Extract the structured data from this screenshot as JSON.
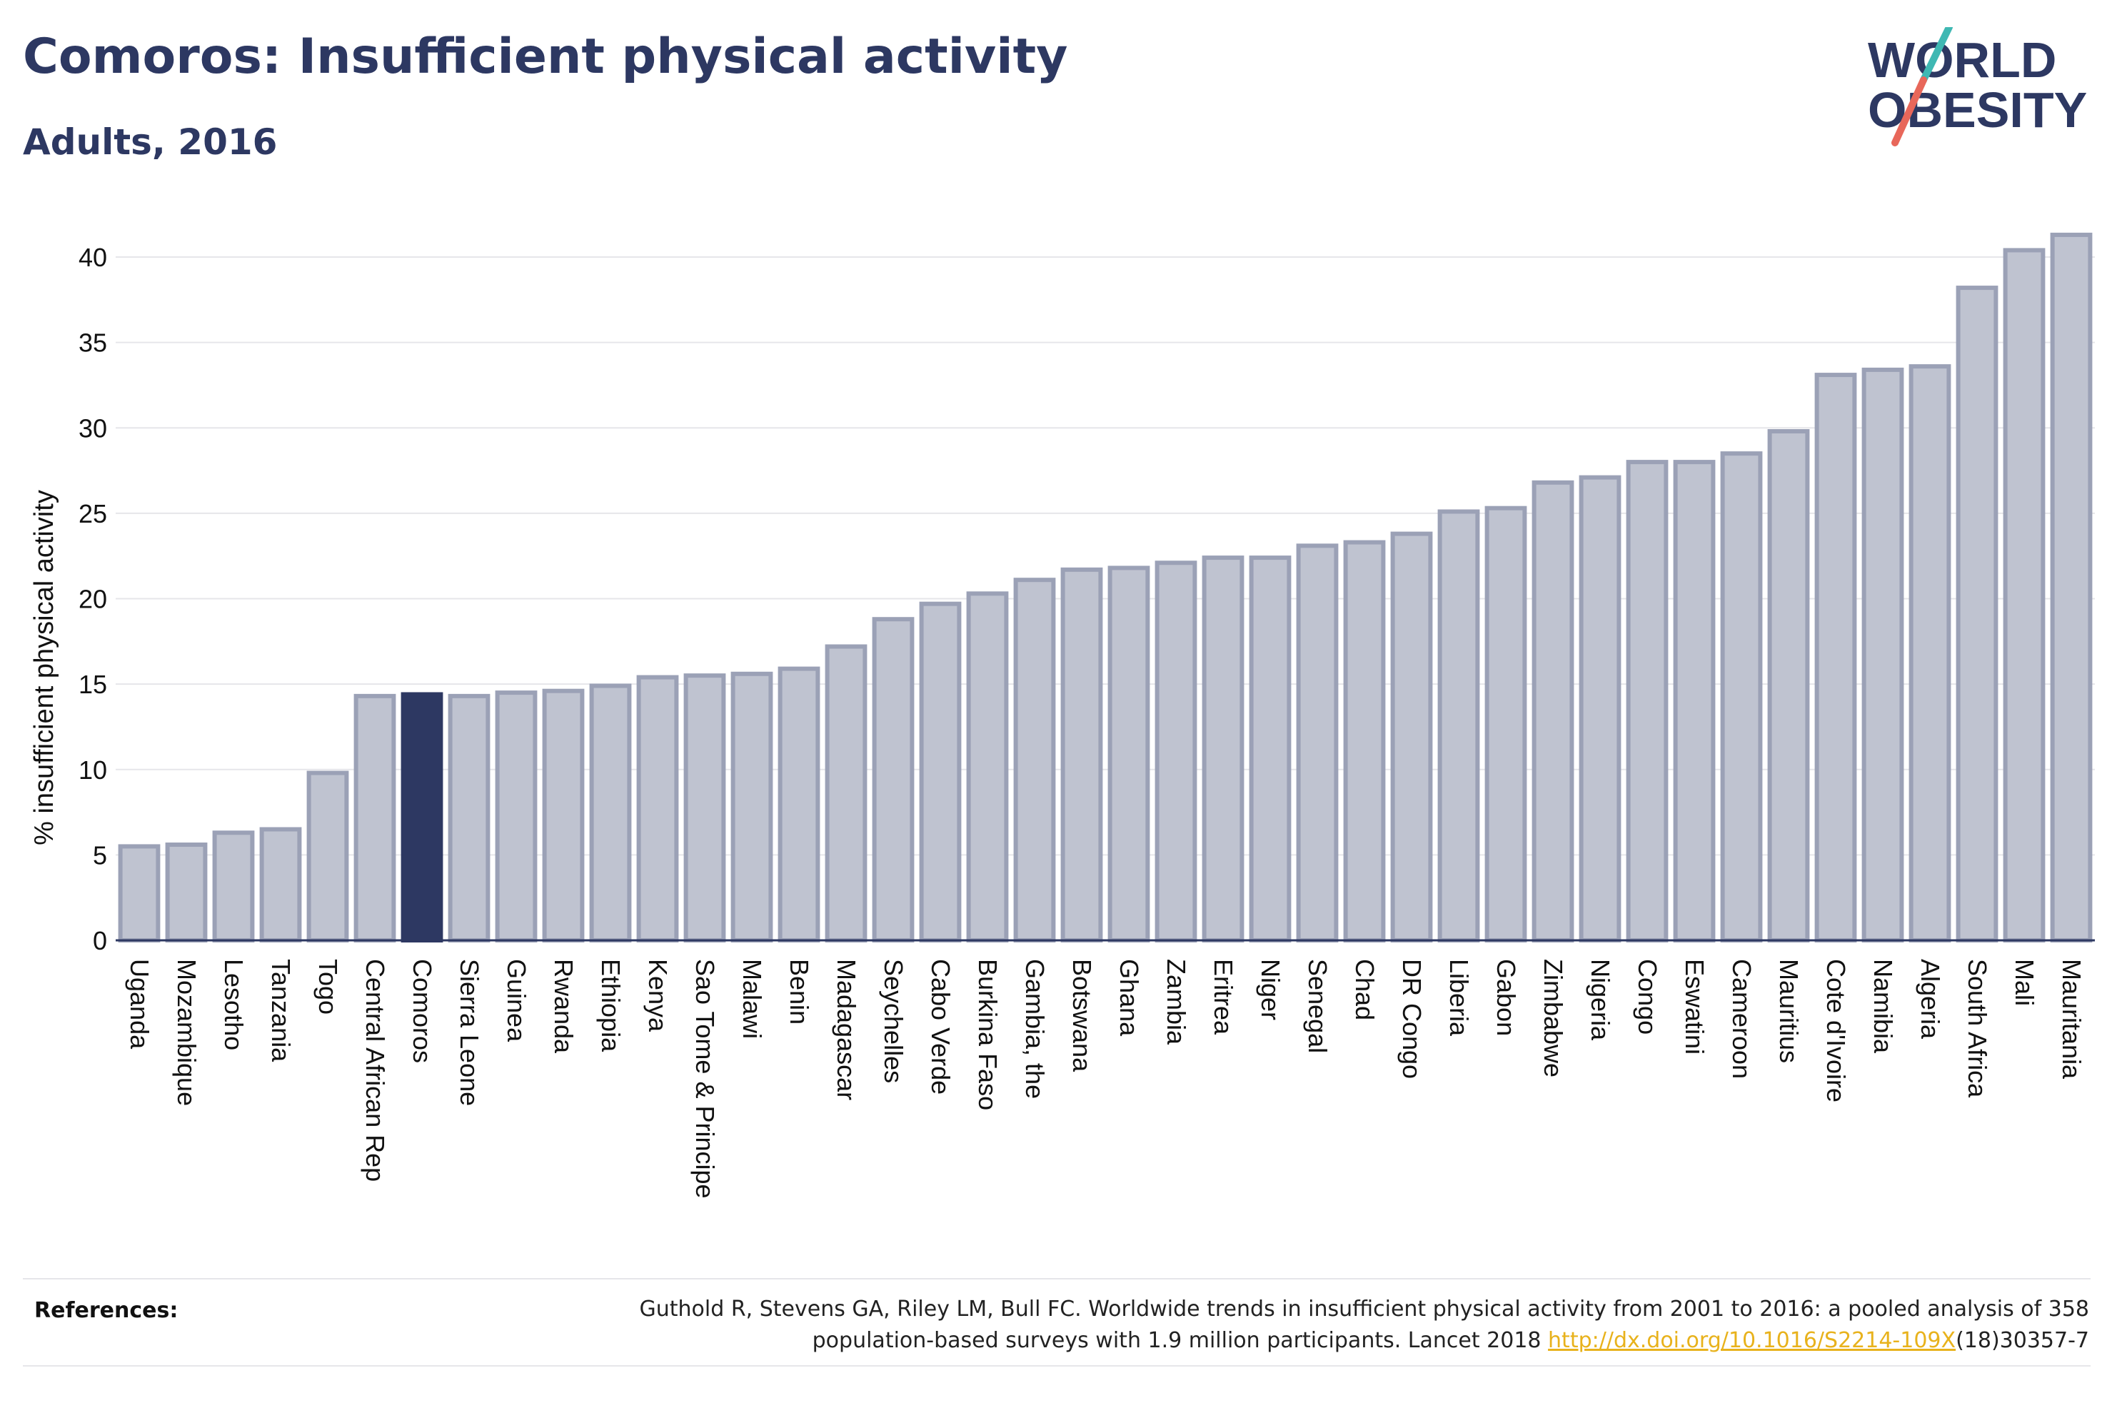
{
  "header": {
    "title": "Comoros: Insufficient physical activity",
    "subtitle": "Adults, 2016"
  },
  "logo": {
    "line1": "WORLD",
    "line2": "OBESITY",
    "accent_teal": "#3fb8b3",
    "accent_coral": "#e8675a",
    "text_color": "#2d3862"
  },
  "references": {
    "label": "References:",
    "text_line1": "Guthold R, Stevens GA, Riley LM, Bull FC. Worldwide trends in insufficient physical activity from 2001 to 2016: a pooled analysis of 358",
    "text_line2_before": "population-based surveys with 1.9 million participants. Lancet 2018 ",
    "link": "http://dx.doi.org/10.1016/S2214-109X",
    "text_line2_after": "(18)30357-7"
  },
  "chart_data": {
    "type": "bar",
    "ylabel": "% insufficient physical activity",
    "xlabel": "",
    "ylim": [
      0,
      42.5
    ],
    "yticks": [
      0,
      5,
      10,
      15,
      20,
      25,
      30,
      35,
      40
    ],
    "grid": true,
    "highlight": "Comoros",
    "colors": {
      "bar": "#bfc3d0",
      "bar_stroke": "#9ba1b6",
      "highlight": "#2d3862",
      "grid": "#e6e6ea"
    },
    "categories": [
      "Uganda",
      "Mozambique",
      "Lesotho",
      "Tanzania",
      "Togo",
      "Central African Rep",
      "Comoros",
      "Sierra Leone",
      "Guinea",
      "Rwanda",
      "Ethiopia",
      "Kenya",
      "Sao Tome & Principe",
      "Malawi",
      "Benin",
      "Madagascar",
      "Seychelles",
      "Cabo Verde",
      "Burkina Faso",
      "Gambia, the",
      "Botswana",
      "Ghana",
      "Zambia",
      "Eritrea",
      "Niger",
      "Senegal",
      "Chad",
      "DR Congo",
      "Liberia",
      "Gabon",
      "Zimbabwe",
      "Nigeria",
      "Congo",
      "Eswatini",
      "Cameroon",
      "Mauritius",
      "Cote d'Ivoire",
      "Namibia",
      "Algeria",
      "South Africa",
      "Mali",
      "Mauritania"
    ],
    "values": [
      5.5,
      5.6,
      6.3,
      6.5,
      9.8,
      14.3,
      14.4,
      14.3,
      14.5,
      14.6,
      14.9,
      15.4,
      15.5,
      15.6,
      15.9,
      17.2,
      18.8,
      19.7,
      20.3,
      21.1,
      21.7,
      21.8,
      22.1,
      22.4,
      22.4,
      23.1,
      23.3,
      23.8,
      25.1,
      25.3,
      26.8,
      27.1,
      28.0,
      28.0,
      28.5,
      29.8,
      33.1,
      33.4,
      33.6,
      38.2,
      40.4,
      41.3
    ]
  }
}
